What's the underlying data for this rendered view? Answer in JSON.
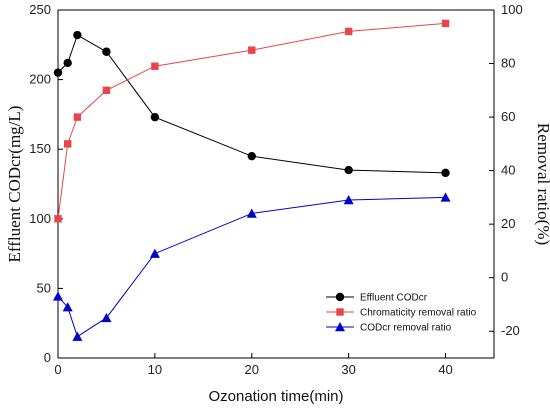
{
  "chart_data": {
    "type": "line",
    "x": [
      0,
      1,
      2,
      5,
      10,
      20,
      30,
      40
    ],
    "xlabel": "Ozonation time(min)",
    "ylabel": "Effluent CODcr(mg/L)",
    "y2label": "Removal ratio(%)",
    "xlim": [
      0,
      45
    ],
    "ylim": [
      0,
      250
    ],
    "y2lim": [
      -30,
      100
    ],
    "xticks": [
      0,
      10,
      20,
      30,
      40
    ],
    "yticks": [
      0,
      50,
      100,
      150,
      200,
      250
    ],
    "y2ticks": [
      -20,
      0,
      20,
      40,
      60,
      80,
      100
    ],
    "grid": false,
    "legend_position": "bottom-right",
    "series": [
      {
        "name": "Effluent CODcr",
        "axis": "left",
        "color": "#000000",
        "marker": "circle",
        "values": [
          205,
          212,
          232,
          220,
          173,
          145,
          135,
          133
        ]
      },
      {
        "name": "Chromaticity removal ratio",
        "axis": "right",
        "color": "#e8454a",
        "marker": "square",
        "values": [
          22,
          50,
          60,
          70,
          79,
          85,
          92,
          95
        ]
      },
      {
        "name": "CODcr removal ratio",
        "axis": "right",
        "color": "#0000cc",
        "marker": "triangle",
        "values": [
          -7,
          -11,
          -22,
          -15,
          9,
          24,
          29,
          30
        ]
      }
    ]
  }
}
